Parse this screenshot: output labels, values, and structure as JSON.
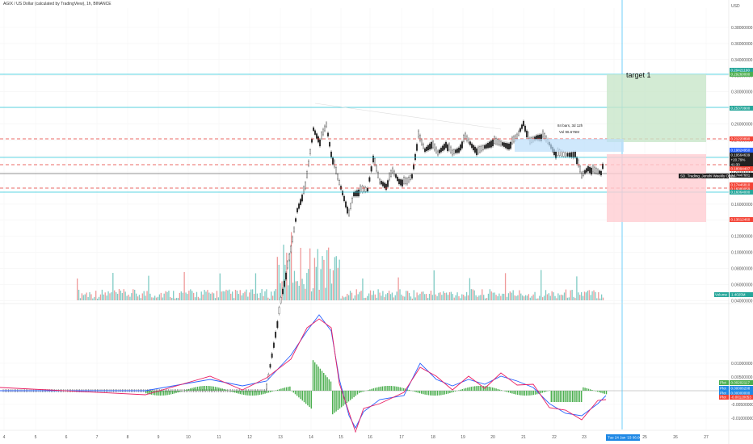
{
  "header": {
    "title": "AGIX / US Dollar (calculated by TradingView), 1h, BINANCE"
  },
  "price_axis": {
    "currency": "USD",
    "ticks": [
      "0.38000000",
      "0.36000000",
      "0.34000000",
      "0.32000000",
      "0.30000000",
      "0.28000000",
      "0.26000000",
      "0.24000000",
      "0.22000000",
      "0.20000000",
      "0.18000000",
      "0.16000000",
      "0.14000000",
      "0.12000000",
      "0.10000000",
      "0.08000000",
      "0.06000000",
      "0.04000000"
    ],
    "tags": [
      {
        "text": "0.29421190",
        "color": "#26a69a"
      },
      {
        "text": "0.29260000",
        "color": "#4caf50"
      },
      {
        "text": "0.25370900",
        "color": "#26a69a"
      },
      {
        "text": "0.21220890",
        "color": "#f44336"
      },
      {
        "text": "0.19824950",
        "color": "#2962ff"
      },
      {
        "text": "0.19564639",
        "color": "#222222"
      },
      {
        "text": "+20.79%",
        "color": "#222222"
      },
      {
        "text": "41:30",
        "color": "#222222"
      },
      {
        "text": "0.18094407",
        "color": "#f44336"
      },
      {
        "text": "0.17447681",
        "color": "#222222"
      },
      {
        "text": "0.17446810",
        "color": "#f44336"
      },
      {
        "text": "0.16080059",
        "color": "#f44336"
      },
      {
        "text": "0.16064000",
        "color": "#26a69a"
      },
      {
        "text": "0.13612460",
        "color": "#f44336"
      }
    ],
    "weekly_open_label": "SD_Trading_Jenshi Weekly Open",
    "volume_label": "Volume",
    "volume_value": "1.4025M"
  },
  "annotations": {
    "target_label": "target 1",
    "measure_bars": "84 bars, 3d 12h",
    "measure_vol": "Vol 96.676M"
  },
  "oscillator": {
    "ticks": [
      "0.01000000",
      "0.00500000",
      "0.00000000",
      "-0.00500000",
      "-0.01000000"
    ],
    "tags": [
      {
        "text": "0.00202117",
        "color": "#4caf50"
      },
      {
        "text": "0.00006208",
        "color": "#1e88e5"
      },
      {
        "text": "0.00000000",
        "color": "#1e88e5"
      },
      {
        "text": "-0.00120053",
        "color": "#f44336"
      }
    ],
    "tag_prefixes": [
      "Plot",
      "Plot",
      "Plot",
      "Plot"
    ]
  },
  "time_axis": {
    "labels": [
      "4",
      "5",
      "6",
      "7",
      "8",
      "9",
      "10",
      "11",
      "12",
      "13",
      "14",
      "15",
      "16",
      "17",
      "18",
      "19",
      "20",
      "21",
      "22",
      "23",
      "24",
      "25",
      "26",
      "27"
    ],
    "crosshair_label": "Tue 24 Jan '23 06:00"
  },
  "colors": {
    "up": "#26a69a",
    "down": "#ef5350",
    "candle": "#222222",
    "macd": "#2962ff",
    "signal": "#e91e63",
    "hist": "#4caf50",
    "target_fill": "#c8e6c9",
    "stop_fill": "#ffcdd2"
  }
}
